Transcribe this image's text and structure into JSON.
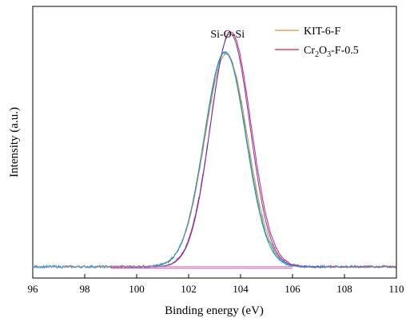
{
  "chart_data": {
    "type": "line",
    "xlabel": "Binding energy (eV)",
    "ylabel": "Intensity (a.u.)",
    "xlim": [
      96,
      110
    ],
    "ylim": [
      0,
      1.2
    ],
    "x_ticks": [
      96,
      98,
      100,
      102,
      104,
      106,
      108,
      110
    ],
    "x_tick_labels": [
      "96",
      "98",
      "100",
      "102",
      "104",
      "106",
      "108",
      "110"
    ],
    "y_ticks_labeled": false,
    "grid": false,
    "annotations": [
      {
        "text": "Si-O-Si",
        "x": 103.5,
        "y": 1.08
      }
    ],
    "legend": {
      "position": "top-right"
    },
    "series": [
      {
        "name": "KIT-6-F",
        "kind": "raw",
        "color": "#e8913a",
        "baseline": 0.05,
        "peak": 103.45,
        "height": 0.94,
        "sigma": 0.82,
        "noise": 0.004,
        "xrange": [
          96,
          110
        ]
      },
      {
        "name": "Cr2O3-F-0.5",
        "label_base": "Cr",
        "label_sub1": "2",
        "label_mid": "O",
        "label_sub2": "3",
        "label_suffix": "-F-0.5",
        "kind": "raw",
        "color": "#d9224a",
        "baseline": 0.05,
        "peak": 103.62,
        "height": 1.04,
        "sigma": 0.78,
        "noise": 0.004,
        "xrange": [
          99,
          110
        ]
      },
      {
        "kind": "fit",
        "color": "#2e9e6b",
        "baseline": 0.05,
        "peak": 103.4,
        "height": 0.95,
        "sigma": 0.8,
        "xrange": [
          99.5,
          107
        ]
      },
      {
        "kind": "fit",
        "color": "#5b3fd0",
        "baseline": 0.05,
        "peak": 103.6,
        "height": 1.03,
        "sigma": 0.76,
        "xrange": [
          99.5,
          107
        ]
      },
      {
        "kind": "raw",
        "color": "#3a8fd8",
        "baseline": 0.05,
        "peak": 103.42,
        "height": 0.945,
        "sigma": 0.81,
        "noise": 0.006,
        "xrange": [
          96,
          110
        ]
      },
      {
        "kind": "baseline",
        "color": "#c850c0",
        "y": 0.043,
        "xrange": [
          99,
          106
        ]
      },
      {
        "kind": "baseline",
        "color": "#e07090",
        "y": 0.05,
        "xrange": [
          99,
          106
        ]
      }
    ]
  }
}
